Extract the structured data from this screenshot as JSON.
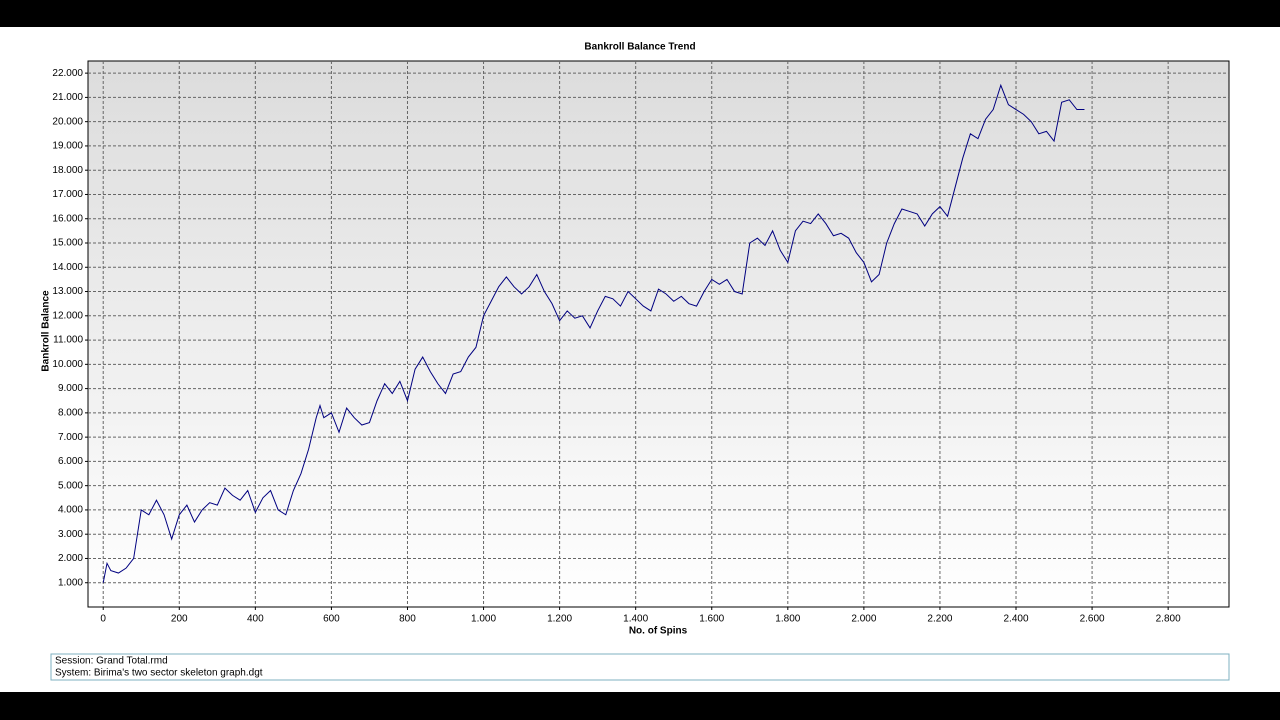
{
  "chart_data": {
    "type": "line",
    "title": "Bankroll Balance Trend",
    "x_label": "No. of Spins",
    "y_label": "Bankroll Balance",
    "x": [
      0,
      10,
      20,
      40,
      60,
      80,
      90,
      100,
      120,
      140,
      160,
      180,
      200,
      220,
      240,
      260,
      280,
      300,
      320,
      340,
      360,
      380,
      400,
      420,
      440,
      460,
      480,
      500,
      520,
      540,
      560,
      570,
      580,
      600,
      620,
      640,
      660,
      680,
      700,
      720,
      740,
      760,
      780,
      800,
      820,
      840,
      860,
      880,
      900,
      920,
      940,
      960,
      980,
      1000,
      1020,
      1040,
      1060,
      1080,
      1100,
      1120,
      1140,
      1160,
      1180,
      1200,
      1220,
      1240,
      1260,
      1280,
      1300,
      1320,
      1340,
      1360,
      1380,
      1400,
      1420,
      1440,
      1460,
      1480,
      1500,
      1520,
      1540,
      1560,
      1580,
      1600,
      1620,
      1640,
      1660,
      1680,
      1700,
      1720,
      1740,
      1760,
      1780,
      1800,
      1820,
      1840,
      1860,
      1880,
      1900,
      1920,
      1940,
      1960,
      1980,
      2000,
      2020,
      2040,
      2060,
      2080,
      2100,
      2120,
      2140,
      2160,
      2180,
      2200,
      2220,
      2240,
      2260,
      2280,
      2300,
      2320,
      2340,
      2360,
      2380,
      2400,
      2420,
      2440,
      2460,
      2480,
      2500,
      2520,
      2540,
      2560,
      2580
    ],
    "series": [
      {
        "name": "Bankroll Balance",
        "color": "#000080",
        "values": [
          1000,
          1800,
          1500,
          1400,
          1600,
          2000,
          3000,
          4000,
          3800,
          4400,
          3800,
          2800,
          3800,
          4200,
          3500,
          4000,
          4300,
          4200,
          4900,
          4600,
          4400,
          4800,
          3900,
          4500,
          4800,
          4000,
          3800,
          4800,
          5500,
          6500,
          7800,
          8300,
          7800,
          8000,
          7200,
          8200,
          7800,
          7500,
          7600,
          8500,
          9200,
          8800,
          9300,
          8500,
          9800,
          10300,
          9700,
          9200,
          8800,
          9600,
          9700,
          10300,
          10700,
          12000,
          12600,
          13200,
          13600,
          13200,
          12900,
          13200,
          13700,
          13000,
          12500,
          11800,
          12200,
          11900,
          12000,
          11500,
          12200,
          12800,
          12700,
          12400,
          13000,
          12700,
          12400,
          12200,
          13100,
          12900,
          12600,
          12800,
          12500,
          12400,
          13000,
          13500,
          13300,
          13500,
          13000,
          12900,
          15000,
          15200,
          14900,
          15500,
          14700,
          14200,
          15500,
          15900,
          15800,
          16200,
          15800,
          15300,
          15400,
          15200,
          14600,
          14200,
          13400,
          13700,
          15000,
          15800,
          16400,
          16300,
          16200,
          15700,
          16200,
          16500,
          16100,
          17300,
          18500,
          19500,
          19300,
          20100,
          20500,
          21500,
          20700,
          20500,
          20300,
          20000,
          19500,
          19600,
          19200,
          20800,
          20900,
          20500,
          20500
        ]
      }
    ],
    "xlim": [
      -40,
      2960
    ],
    "xticks": [
      0,
      200,
      400,
      600,
      800,
      {
        "value": 1000,
        "label": "1.000"
      },
      {
        "value": 1200,
        "label": "1.200"
      },
      {
        "value": 1400,
        "label": "1.400"
      },
      {
        "value": 1600,
        "label": "1.600"
      },
      {
        "value": 1800,
        "label": "1.800"
      },
      {
        "value": 2000,
        "label": "2.000"
      },
      {
        "value": 2200,
        "label": "2.200"
      },
      {
        "value": 2400,
        "label": "2.400"
      },
      {
        "value": 2600,
        "label": "2.600"
      },
      {
        "value": 2800,
        "label": "2.800"
      }
    ],
    "ylim": [
      0,
      22500
    ],
    "yticks": [
      {
        "value": 1000,
        "label": "1.000"
      },
      {
        "value": 2000,
        "label": "2.000"
      },
      {
        "value": 3000,
        "label": "3.000"
      },
      {
        "value": 4000,
        "label": "4.000"
      },
      {
        "value": 5000,
        "label": "5.000"
      },
      {
        "value": 6000,
        "label": "6.000"
      },
      {
        "value": 7000,
        "label": "7.000"
      },
      {
        "value": 8000,
        "label": "8.000"
      },
      {
        "value": 9000,
        "label": "9.000"
      },
      {
        "value": 10000,
        "label": "10.000"
      },
      {
        "value": 11000,
        "label": "11.000"
      },
      {
        "value": 12000,
        "label": "12.000"
      },
      {
        "value": 13000,
        "label": "13.000"
      },
      {
        "value": 14000,
        "label": "14.000"
      },
      {
        "value": 15000,
        "label": "15.000"
      },
      {
        "value": 16000,
        "label": "16.000"
      },
      {
        "value": 17000,
        "label": "17.000"
      },
      {
        "value": 18000,
        "label": "18.000"
      },
      {
        "value": 19000,
        "label": "19.000"
      },
      {
        "value": 20000,
        "label": "20.000"
      },
      {
        "value": 21000,
        "label": "21.000"
      },
      {
        "value": 22000,
        "label": "22.000"
      }
    ],
    "grid": true
  },
  "info": {
    "session": "Session: Grand Total.rmd",
    "system": "System: Birima's two sector skeleton graph.dgt"
  }
}
